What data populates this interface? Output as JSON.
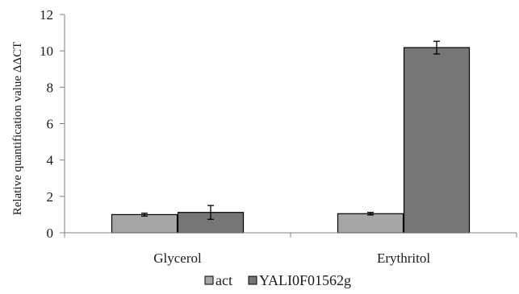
{
  "chart_data": {
    "type": "bar",
    "categories": [
      "Glycerol",
      "Erythritol"
    ],
    "series": [
      {
        "name": "act",
        "values": [
          1.0,
          1.05
        ],
        "errors": [
          0.08,
          0.07
        ],
        "color": "#a6a6a6"
      },
      {
        "name": "YALI0F01562g",
        "values": [
          1.12,
          10.18
        ],
        "errors": [
          0.38,
          0.35
        ],
        "color": "#767676"
      }
    ],
    "title": "",
    "xlabel": "",
    "ylabel": "Relative quantification value ΔΔCT",
    "ylim": [
      0,
      12
    ],
    "yticks": [
      0,
      2,
      4,
      6,
      8,
      10,
      12
    ],
    "grid": false,
    "legend_position": "bottom"
  }
}
